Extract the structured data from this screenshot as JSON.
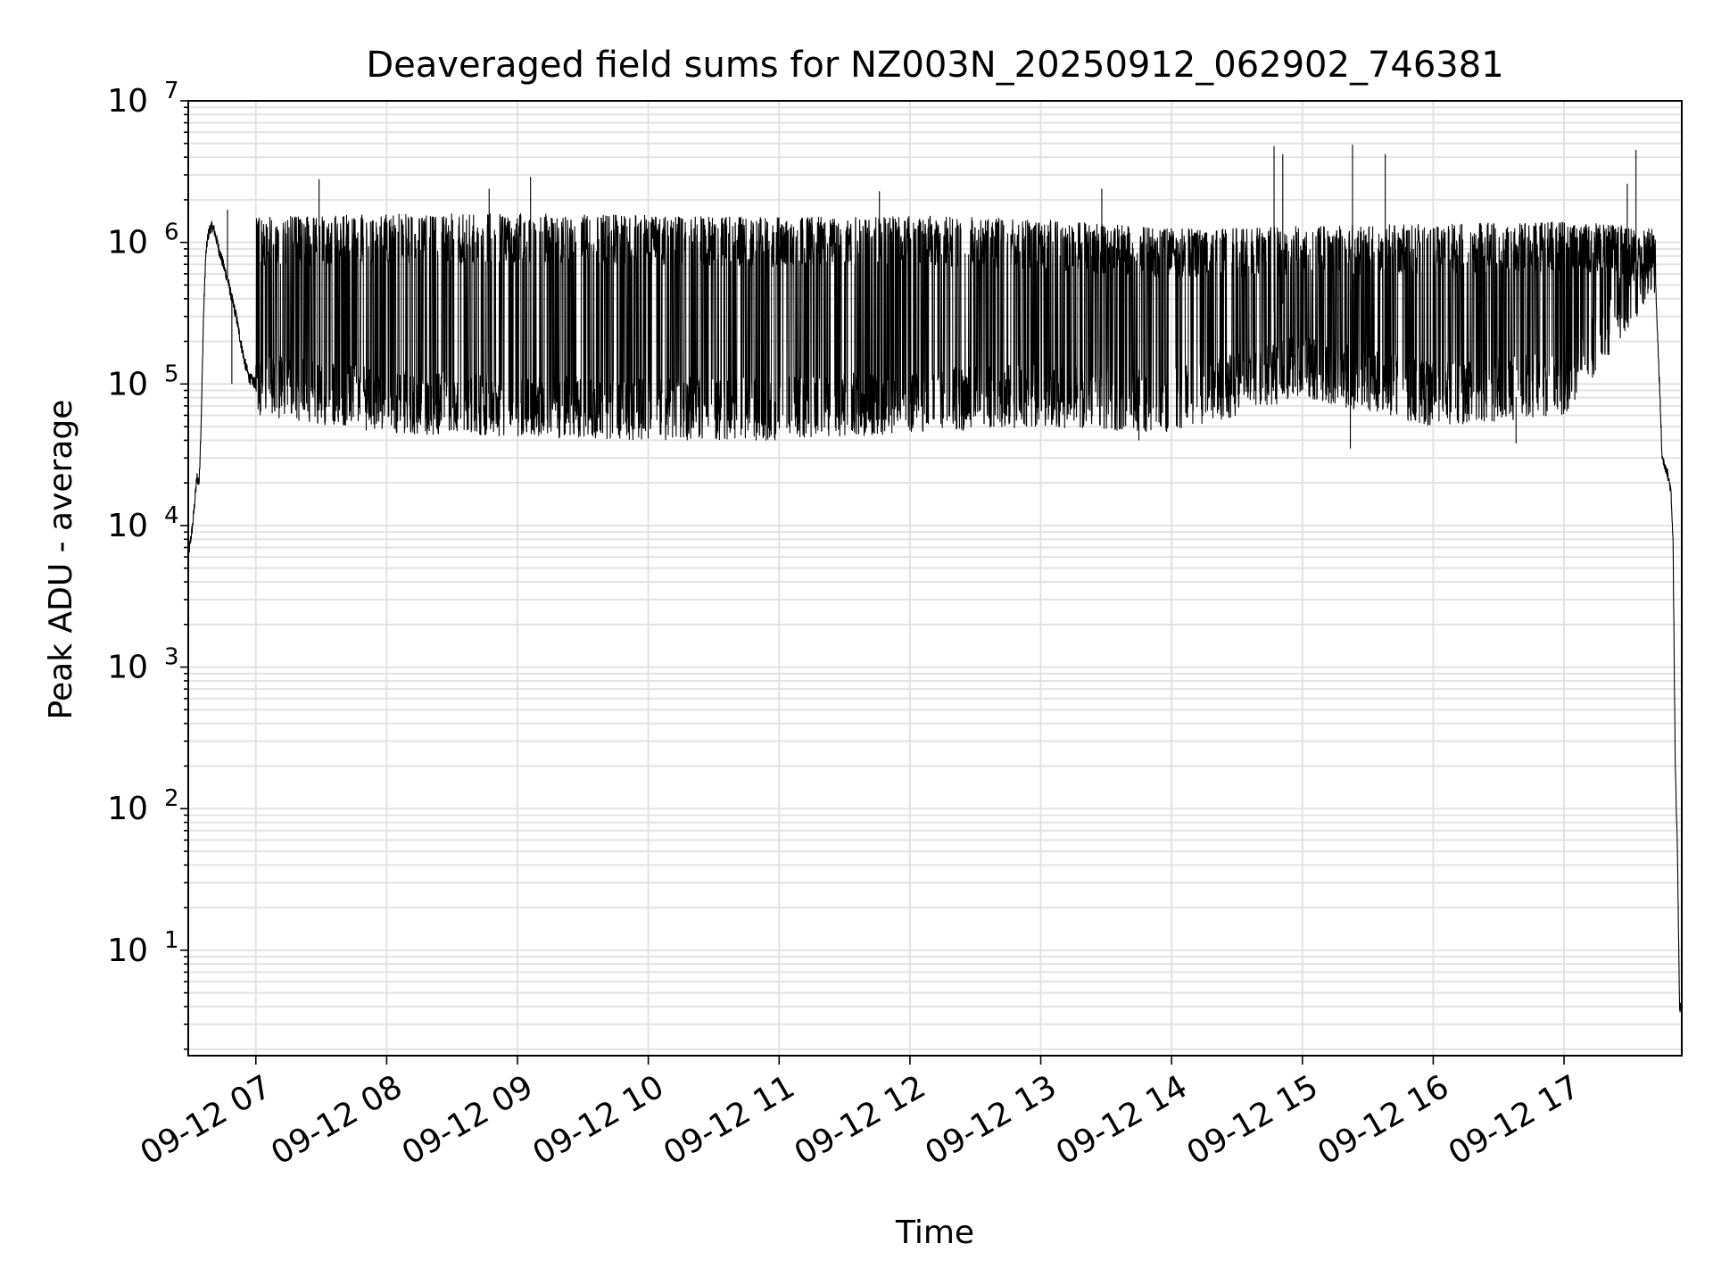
{
  "chart_data": {
    "type": "line",
    "title": "Deaveraged field sums for NZ003N_20250912_062902_746381",
    "xlabel": "Time",
    "ylabel": "Peak ADU - average",
    "yscale": "log",
    "ylim": [
      1.8,
      10000000
    ],
    "xlim": [
      "09-12 06:29",
      "09-12 17:54"
    ],
    "grid": true,
    "legend": "none",
    "line_color": "#000000",
    "x_ticks": [
      {
        "t": "09-12 07:00",
        "label": "09-12 07"
      },
      {
        "t": "09-12 08:00",
        "label": "09-12 08"
      },
      {
        "t": "09-12 09:00",
        "label": "09-12 09"
      },
      {
        "t": "09-12 10:00",
        "label": "09-12 10"
      },
      {
        "t": "09-12 11:00",
        "label": "09-12 11"
      },
      {
        "t": "09-12 12:00",
        "label": "09-12 12"
      },
      {
        "t": "09-12 13:00",
        "label": "09-12 13"
      },
      {
        "t": "09-12 14:00",
        "label": "09-12 14"
      },
      {
        "t": "09-12 15:00",
        "label": "09-12 15"
      },
      {
        "t": "09-12 16:00",
        "label": "09-12 16"
      },
      {
        "t": "09-12 17:00",
        "label": "09-12 17"
      }
    ],
    "y_ticks": [
      {
        "value": 10,
        "base": "10",
        "exp": "1"
      },
      {
        "value": 100,
        "base": "10",
        "exp": "2"
      },
      {
        "value": 1000,
        "base": "10",
        "exp": "3"
      },
      {
        "value": 10000,
        "base": "10",
        "exp": "4"
      },
      {
        "value": 100000,
        "base": "10",
        "exp": "5"
      },
      {
        "value": 1000000,
        "base": "10",
        "exp": "6"
      },
      {
        "value": 10000000,
        "base": "10",
        "exp": "7"
      }
    ],
    "series": [
      {
        "points": [
          [
            "09-12 06:29",
            6000
          ],
          [
            "09-12 06:31",
            10000
          ],
          [
            "09-12 06:32",
            15000
          ],
          [
            "09-12 06:33",
            22000
          ],
          [
            "09-12 06:34",
            20000
          ],
          [
            "09-12 06:35",
            60000
          ],
          [
            "09-12 06:36",
            300000
          ],
          [
            "09-12 06:37",
            800000
          ],
          [
            "09-12 06:38",
            1100000
          ],
          [
            "09-12 06:39",
            1250000
          ],
          [
            "09-12 06:40",
            1300000
          ],
          [
            "09-12 06:41",
            1200000
          ],
          [
            "09-12 06:43",
            900000
          ],
          [
            "09-12 06:45",
            700000
          ],
          [
            "09-12 06:47",
            550000
          ],
          [
            "09-12 06:49",
            400000
          ],
          [
            "09-12 06:51",
            300000
          ],
          [
            "09-12 06:53",
            200000
          ],
          [
            "09-12 06:55",
            140000
          ],
          [
            "09-12 06:57",
            110000
          ],
          [
            "09-12 07:00",
            100000
          ],
          [
            "09-12 07:05",
            75000
          ],
          [
            "09-12 07:15",
            70000
          ],
          [
            "09-12 07:30",
            65000
          ],
          [
            "09-12 07:45",
            62000
          ],
          [
            "09-12 08:00",
            60000
          ],
          [
            "09-12 08:30",
            58000
          ],
          [
            "09-12 09:00",
            57000
          ],
          [
            "09-12 09:30",
            55000
          ],
          [
            "09-12 10:00",
            52000
          ],
          [
            "09-12 10:30",
            52000
          ],
          [
            "09-12 11:00",
            53000
          ],
          [
            "09-12 11:30",
            55000
          ],
          [
            "09-12 12:00",
            57000
          ],
          [
            "09-12 12:30",
            60000
          ],
          [
            "09-12 13:00",
            65000
          ],
          [
            "09-12 13:30",
            70000
          ],
          [
            "09-12 14:00",
            75000
          ],
          [
            "09-12 14:30",
            90000
          ],
          [
            "09-12 14:45",
            300000
          ],
          [
            "09-12 15:00",
            500000
          ],
          [
            "09-12 15:30",
            450000
          ],
          [
            "09-12 16:00",
            300000
          ],
          [
            "09-12 16:20",
            90000
          ],
          [
            "09-12 16:40",
            80000
          ],
          [
            "09-12 17:00",
            150000
          ],
          [
            "09-12 17:15",
            600000
          ],
          [
            "09-12 17:30",
            900000
          ],
          [
            "09-12 17:38",
            800000
          ],
          [
            "09-12 17:42",
            500000
          ],
          [
            "09-12 17:44",
            80000
          ],
          [
            "09-12 17:45",
            30000
          ],
          [
            "09-12 17:47",
            25000
          ],
          [
            "09-12 17:49",
            18000
          ],
          [
            "09-12 17:50",
            8000
          ],
          [
            "09-12 17:51",
            200
          ],
          [
            "09-12 17:52",
            50
          ],
          [
            "09-12 17:53",
            4
          ]
        ],
        "upper_envelope": [
          [
            "09-12 07:00",
            1500000
          ],
          [
            "09-12 08:00",
            1600000
          ],
          [
            "09-12 09:00",
            1600000
          ],
          [
            "09-12 10:00",
            1550000
          ],
          [
            "09-12 11:00",
            1500000
          ],
          [
            "09-12 12:00",
            1550000
          ],
          [
            "09-12 13:00",
            1450000
          ],
          [
            "09-12 14:00",
            1250000
          ],
          [
            "09-12 15:00",
            1300000
          ],
          [
            "09-12 16:00",
            1350000
          ],
          [
            "09-12 17:00",
            1400000
          ],
          [
            "09-12 17:40",
            1300000
          ]
        ],
        "lower_envelope": [
          [
            "09-12 07:00",
            60000
          ],
          [
            "09-12 08:00",
            45000
          ],
          [
            "09-12 09:00",
            42000
          ],
          [
            "09-12 10:00",
            40000
          ],
          [
            "09-12 11:00",
            40000
          ],
          [
            "09-12 12:00",
            45000
          ],
          [
            "09-12 13:00",
            50000
          ],
          [
            "09-12 14:00",
            45000
          ],
          [
            "09-12 15:00",
            80000
          ],
          [
            "09-12 16:00",
            50000
          ],
          [
            "09-12 17:00",
            60000
          ],
          [
            "09-12 17:40",
            400000
          ]
        ],
        "spikes": [
          [
            "09-12 06:49",
            100000
          ],
          [
            "09-12 06:47",
            1700000
          ],
          [
            "09-12 07:29",
            2800000
          ],
          [
            "09-12 08:47",
            2400000
          ],
          [
            "09-12 09:06",
            2900000
          ],
          [
            "09-12 11:46",
            2300000
          ],
          [
            "09-12 13:28",
            2400000
          ],
          [
            "09-12 13:45",
            40000
          ],
          [
            "09-12 14:47",
            4800000
          ],
          [
            "09-12 14:51",
            4200000
          ],
          [
            "09-12 15:22",
            35000
          ],
          [
            "09-12 15:23",
            4900000
          ],
          [
            "09-12 15:38",
            4200000
          ],
          [
            "09-12 16:38",
            38000
          ],
          [
            "09-12 17:33",
            4500000
          ],
          [
            "09-12 17:29",
            2600000
          ]
        ],
        "burst_dropouts": [
          [
            "09-12 07:00",
            "09-12 17:42"
          ]
        ]
      }
    ]
  }
}
